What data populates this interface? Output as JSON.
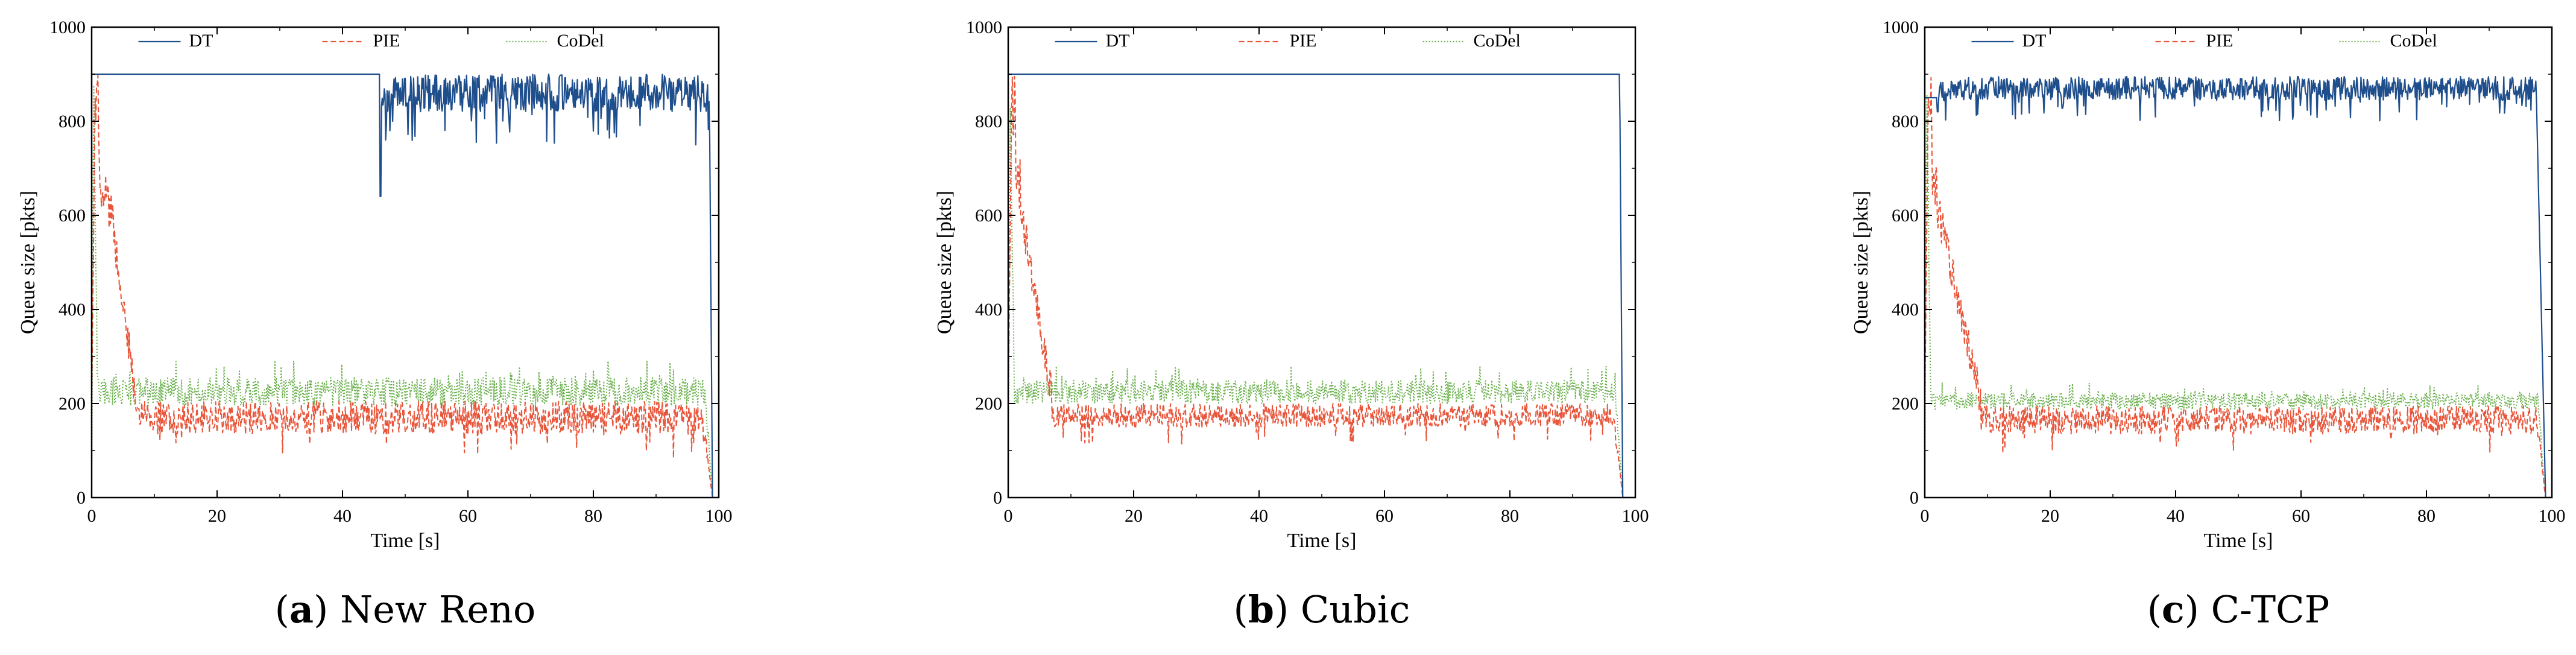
{
  "chart_data": [
    {
      "type": "line",
      "panel_letter": "a",
      "caption_title": "New Reno",
      "xlabel": "Time [s]",
      "ylabel": "Queue size [pkts]",
      "xlim": [
        0,
        100
      ],
      "ylim": [
        0,
        1000
      ],
      "xticks": [
        "0",
        "20",
        "40",
        "60",
        "80",
        "100"
      ],
      "yticks": [
        "0",
        "200",
        "400",
        "600",
        "800",
        "1000"
      ],
      "legend_position": "top-center",
      "series": [
        {
          "name": "DT",
          "color": "#1f4e8c",
          "style": "solid",
          "shape": {
            "phases": [
              {
                "t_start": 0,
                "t_end": 46,
                "value": 900
              },
              {
                "t_start": 46,
                "t_end": 98.5,
                "mean": 860,
                "noise": 40,
                "dips_to": 640
              }
            ],
            "end_drop_t": 99,
            "end_value": 0
          }
        },
        {
          "name": "PIE",
          "color": "#e8553a",
          "style": "dashed",
          "shape": {
            "initial_peak": 900,
            "secondary_peak": 620,
            "secondary_peak_t": 3,
            "steady_mean": 170,
            "steady_noise": 35,
            "decay_end_t": 7,
            "end_drop_t": 99
          }
        },
        {
          "name": "CoDel",
          "color": "#6ab04c",
          "style": "dotted",
          "shape": {
            "initial_peak": 900,
            "steady_mean": 225,
            "steady_noise": 30,
            "end_drop_t": 99
          }
        }
      ]
    },
    {
      "type": "line",
      "panel_letter": "b",
      "caption_title": "Cubic",
      "xlabel": "Time [s]",
      "ylabel": "Queue size [pkts]",
      "xlim": [
        0,
        100
      ],
      "ylim": [
        0,
        1000
      ],
      "xticks": [
        "0",
        "20",
        "40",
        "60",
        "80",
        "100"
      ],
      "yticks": [
        "0",
        "200",
        "400",
        "600",
        "800",
        "1000"
      ],
      "legend_position": "top-center",
      "series": [
        {
          "name": "DT",
          "color": "#1f4e8c",
          "style": "solid",
          "shape": {
            "phases": [
              {
                "t_start": 0,
                "t_end": 97.5,
                "value": 900
              }
            ],
            "end_drop_t": 98,
            "end_value": 0
          }
        },
        {
          "name": "PIE",
          "color": "#e8553a",
          "style": "dashed",
          "shape": {
            "initial_peak": 900,
            "secondary_peak": 620,
            "secondary_peak_t": 2,
            "steady_mean": 175,
            "steady_noise": 25,
            "decay_end_t": 7,
            "end_drop_t": 98
          }
        },
        {
          "name": "CoDel",
          "color": "#6ab04c",
          "style": "dotted",
          "shape": {
            "initial_peak": 900,
            "steady_mean": 225,
            "steady_noise": 25,
            "end_drop_t": 98
          }
        }
      ]
    },
    {
      "type": "line",
      "panel_letter": "c",
      "caption_title": "C-TCP",
      "xlabel": "Time [s]",
      "ylabel": "Queue size [pkts]",
      "xlim": [
        0,
        100
      ],
      "ylim": [
        0,
        1000
      ],
      "xticks": [
        "0",
        "20",
        "40",
        "60",
        "80",
        "100"
      ],
      "yticks": [
        "0",
        "200",
        "400",
        "600",
        "800",
        "1000"
      ],
      "legend_position": "top-center",
      "series": [
        {
          "name": "DT",
          "color": "#1f4e8c",
          "style": "solid",
          "shape": {
            "phases": [
              {
                "t_start": 0,
                "t_end": 2,
                "value": 850
              },
              {
                "t_start": 2,
                "t_end": 97.5,
                "mean": 870,
                "noise": 25,
                "dips_to": 820
              }
            ],
            "end_drop_t": 99,
            "end_value": 0
          }
        },
        {
          "name": "PIE",
          "color": "#e8553a",
          "style": "dashed",
          "shape": {
            "initial_peak": 900,
            "secondary_peak": 620,
            "secondary_peak_t": 2,
            "steady_mean": 165,
            "steady_noise": 30,
            "decay_end_t": 9,
            "end_drop_t": 99
          }
        },
        {
          "name": "CoDel",
          "color": "#6ab04c",
          "style": "dotted",
          "shape": {
            "initial_peak": 900,
            "steady_mean": 205,
            "steady_noise": 18,
            "end_drop_t": 99
          }
        }
      ]
    }
  ]
}
